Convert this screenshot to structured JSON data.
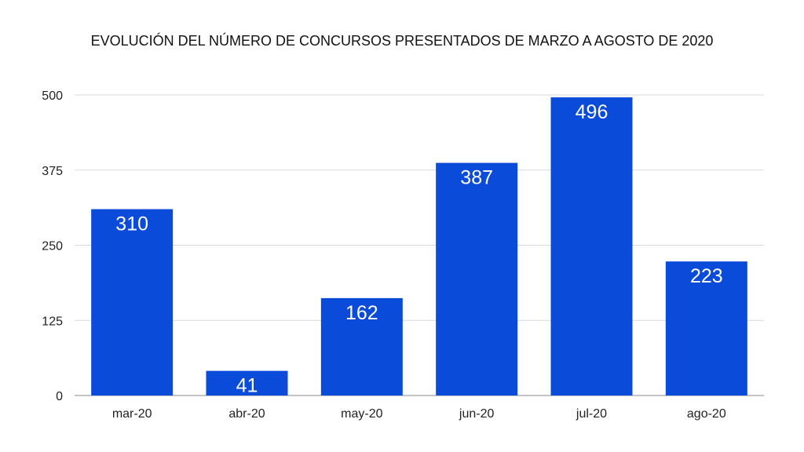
{
  "chart_data": {
    "type": "bar",
    "title": "EVOLUCIÓN DEL NÚMERO DE CONCURSOS PRESENTADOS DE MARZO A AGOSTO DE 2020",
    "categories": [
      "mar-20",
      "abr-20",
      "may-20",
      "jun-20",
      "jul-20",
      "ago-20"
    ],
    "values": [
      310,
      41,
      162,
      387,
      496,
      223
    ],
    "xlabel": "",
    "ylabel": "",
    "ylim": [
      0,
      500
    ],
    "yticks": [
      0,
      125,
      250,
      375,
      500
    ],
    "grid": true,
    "bar_color": "#0b4bd9"
  }
}
